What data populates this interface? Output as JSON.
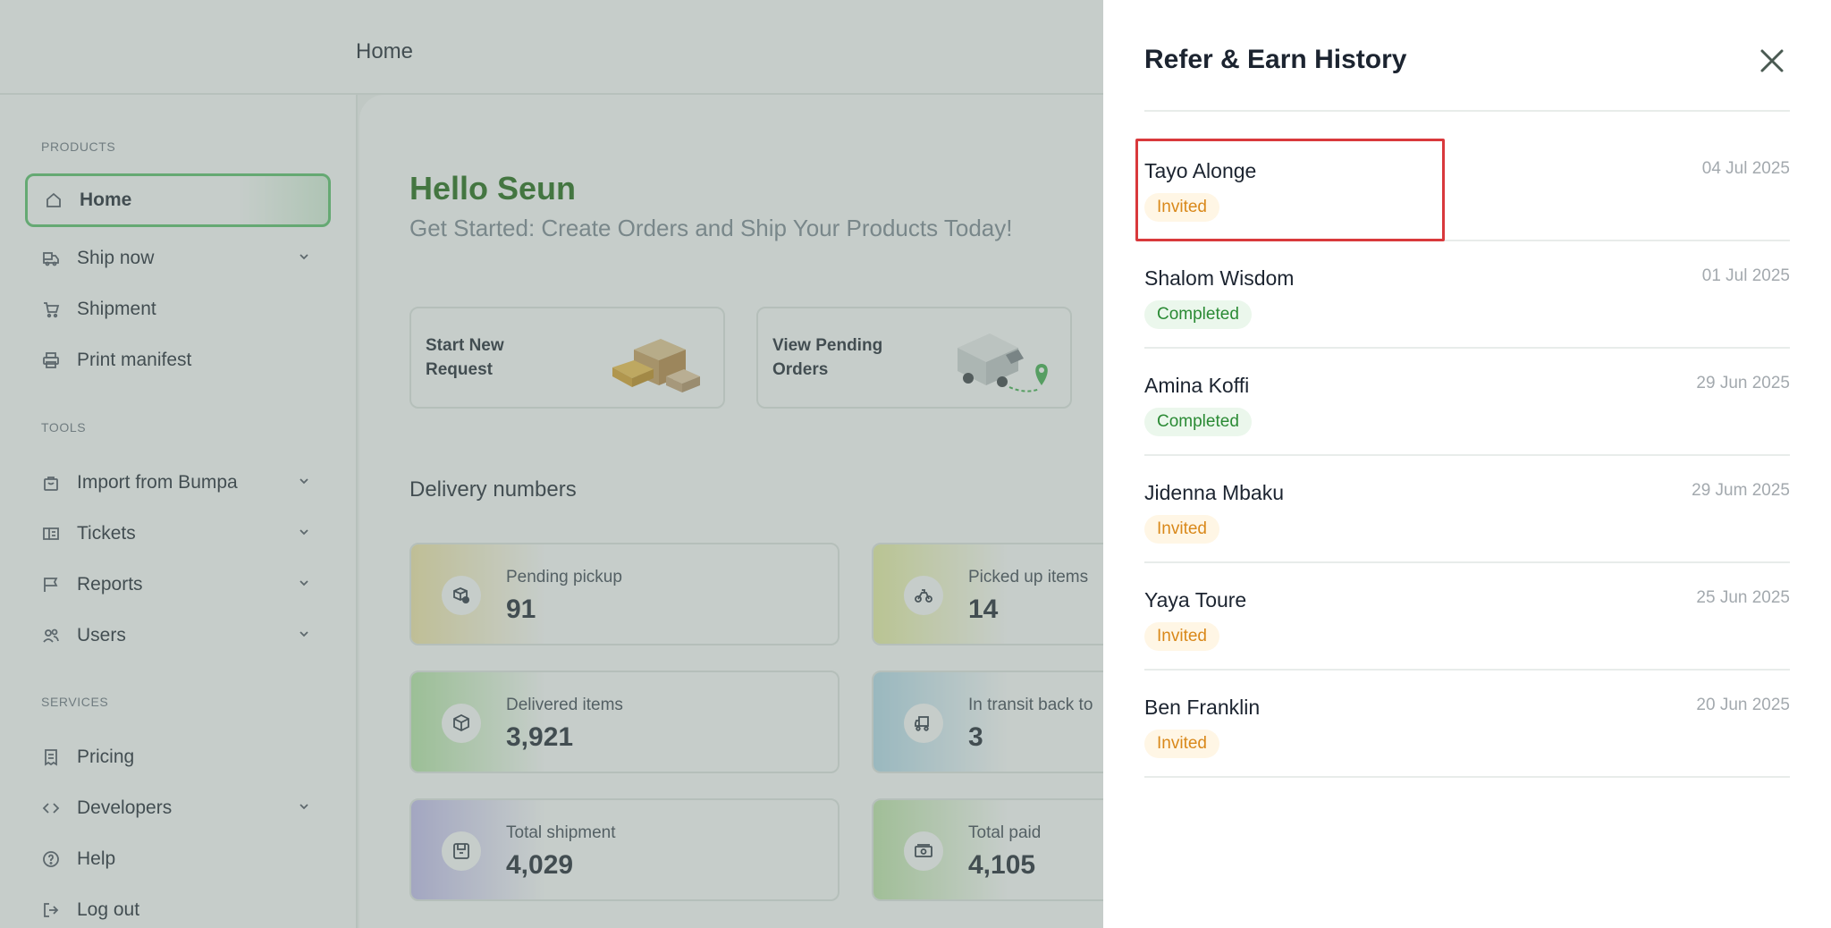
{
  "topbar": {
    "title": "Home"
  },
  "sidebar": {
    "sections": [
      {
        "label": "PRODUCTS"
      },
      {
        "label": "TOOLS"
      },
      {
        "label": "SERVICES"
      }
    ],
    "items": [
      {
        "label": "Home",
        "icon": "home-icon"
      },
      {
        "label": "Ship now",
        "icon": "ship-icon"
      },
      {
        "label": "Shipment",
        "icon": "cart-icon"
      },
      {
        "label": "Print manifest",
        "icon": "printer-icon"
      },
      {
        "label": "Import from Bumpa",
        "icon": "bag-icon"
      },
      {
        "label": "Tickets",
        "icon": "ticket-icon"
      },
      {
        "label": "Reports",
        "icon": "report-icon"
      },
      {
        "label": "Users",
        "icon": "users-icon"
      },
      {
        "label": "Pricing",
        "icon": "receipt-icon"
      },
      {
        "label": "Developers",
        "icon": "code-icon"
      },
      {
        "label": "Help",
        "icon": "help-icon"
      },
      {
        "label": "Log out",
        "icon": "logout-icon"
      }
    ]
  },
  "main": {
    "greeting": "Hello Seun",
    "subtitle": "Get Started: Create Orders and Ship Your Products Today!",
    "actions": [
      {
        "label": "Start New Request"
      },
      {
        "label": "View Pending Orders"
      }
    ],
    "delivery_title": "Delivery numbers",
    "stats": [
      {
        "label": "Pending pickup",
        "value": "91"
      },
      {
        "label": "Picked up items",
        "value": "14"
      },
      {
        "label": "Delivered items",
        "value": "3,921"
      },
      {
        "label": "In transit back to",
        "value": "3"
      },
      {
        "label": "Total shipment",
        "value": "4,029"
      },
      {
        "label": "Total paid",
        "value": "4,105"
      }
    ]
  },
  "drawer": {
    "title": "Refer & Earn History",
    "items": [
      {
        "name": "Tayo Alonge",
        "status": "Invited",
        "date": "04 Jul 2025"
      },
      {
        "name": "Shalom Wisdom",
        "status": "Completed",
        "date": "01 Jul 2025"
      },
      {
        "name": "Amina Koffi",
        "status": "Completed",
        "date": "29 Jun 2025"
      },
      {
        "name": "Jidenna Mbaku",
        "status": "Invited",
        "date": "29 Jum 2025"
      },
      {
        "name": "Yaya Toure",
        "status": "Invited",
        "date": "25 Jun 2025"
      },
      {
        "name": "Ben Franklin",
        "status": "Invited",
        "date": "20 Jun 2025"
      }
    ]
  },
  "colors": {
    "brand_green": "#1f6a14",
    "invited": "#d9881a",
    "completed": "#2a8a34",
    "highlight": "#d9393c"
  }
}
